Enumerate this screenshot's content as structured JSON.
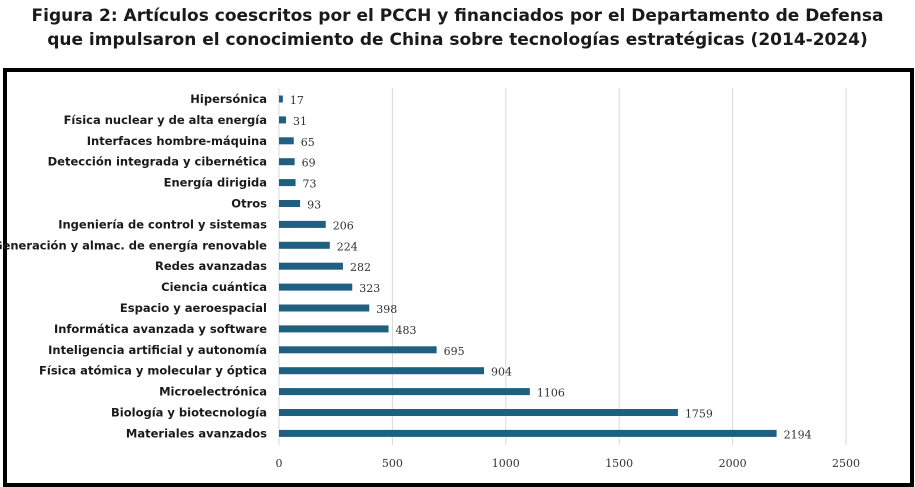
{
  "title_line1": "Figura 2: Artículos coescritos por el PCCH y financiados por el Departamento de Defensa",
  "title_line2": "que impulsaron el conocimiento de China sobre tecnologías estratégicas (2014-2024)",
  "chart_data": {
    "type": "bar",
    "orientation": "horizontal",
    "categories": [
      "Hipersónica",
      "Física nuclear y de alta energía",
      "Interfaces hombre-máquina",
      "Detección integrada y cibernética",
      "Energía dirigida",
      "Otros",
      "Ingeniería de control y sistemas",
      "Generación y almac. de energía renovable",
      "Redes avanzadas",
      "Ciencia cuántica",
      "Espacio y aeroespacial",
      "Informática avanzada y software",
      "Inteligencia artificial y autonomía",
      "Física atómica y molecular y óptica",
      "Microelectrónica",
      "Biología y biotecnología",
      "Materiales avanzados"
    ],
    "values": [
      17,
      31,
      65,
      69,
      73,
      93,
      206,
      224,
      282,
      323,
      398,
      483,
      695,
      904,
      1106,
      1759,
      2194
    ],
    "xlim": [
      0,
      2500
    ],
    "xticks": [
      0,
      500,
      1000,
      1500,
      2000,
      2500
    ],
    "grid": "vertical",
    "bar_color": "#1f5f80"
  }
}
